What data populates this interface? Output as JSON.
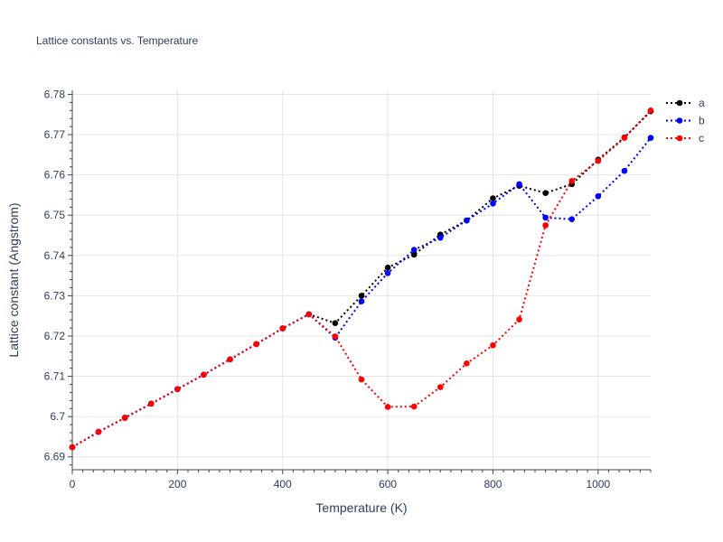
{
  "chart_data": {
    "type": "line",
    "title": "Lattice constants vs. Temperature",
    "xlabel": "Temperature (K)",
    "ylabel": "Lattice constant (Angstrom)",
    "xlim": [
      0,
      1100
    ],
    "ylim": [
      6.6868,
      6.781
    ],
    "xticks": [
      0,
      200,
      400,
      600,
      800,
      1000
    ],
    "xtick_labels": [
      "0",
      "200",
      "400",
      "600",
      "800",
      "1000"
    ],
    "yticks": [
      6.69,
      6.7,
      6.71,
      6.72,
      6.73,
      6.74,
      6.75,
      6.76,
      6.77,
      6.78
    ],
    "ytick_labels": [
      "6.69",
      "6.7",
      "6.71",
      "6.72",
      "6.73",
      "6.74",
      "6.75",
      "6.76",
      "6.77",
      "6.78"
    ],
    "grid": true,
    "legend_position": "top-right",
    "x": [
      0,
      50,
      100,
      150,
      200,
      250,
      300,
      350,
      400,
      450,
      500,
      550,
      600,
      650,
      700,
      750,
      800,
      850,
      900,
      950,
      1000,
      1050,
      1100
    ],
    "series": [
      {
        "name": "a",
        "color": "#000000",
        "values": [
          6.6924,
          6.6962,
          6.6997,
          6.7032,
          6.7068,
          6.7104,
          6.7142,
          6.718,
          6.7219,
          6.7254,
          6.7232,
          6.73,
          6.737,
          6.7402,
          6.7452,
          6.7487,
          6.7542,
          6.7573,
          6.7555,
          6.7577,
          6.7638,
          6.7693,
          6.7758
        ]
      },
      {
        "name": "b",
        "color": "#0000ff",
        "values": [
          6.6924,
          6.6962,
          6.6997,
          6.7032,
          6.7068,
          6.7104,
          6.7142,
          6.718,
          6.7219,
          6.7254,
          6.7196,
          6.7286,
          6.7356,
          6.7414,
          6.7444,
          6.7487,
          6.7529,
          6.7577,
          6.7494,
          6.749,
          6.7547,
          6.761,
          6.7692
        ]
      },
      {
        "name": "c",
        "color": "#ff0000",
        "values": [
          6.6924,
          6.6962,
          6.6997,
          6.7032,
          6.7068,
          6.7104,
          6.7142,
          6.718,
          6.7219,
          6.7254,
          6.7199,
          6.7092,
          6.7024,
          6.7025,
          6.7073,
          6.7132,
          6.7177,
          6.7241,
          6.7475,
          6.7585,
          6.7635,
          6.7692,
          6.776
        ]
      }
    ]
  }
}
